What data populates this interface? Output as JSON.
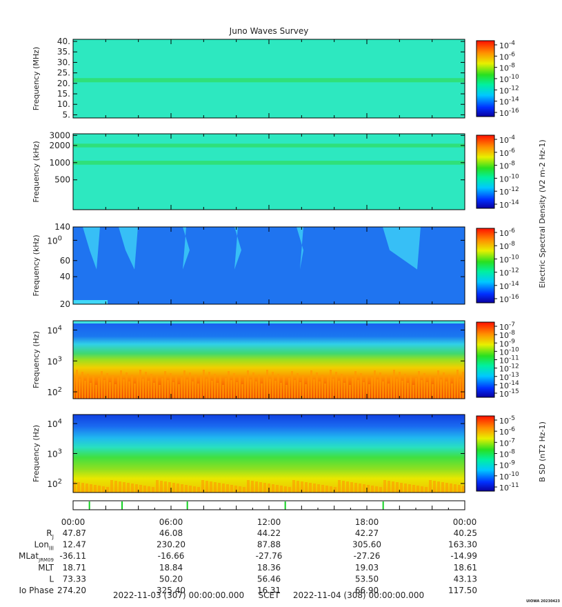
{
  "title": "Juno Waves Survey",
  "panels": [
    {
      "id": "p1",
      "ylabel": "Frequency (MHz)",
      "scale": "linear",
      "ylim": [
        3.5,
        41
      ],
      "ticks": [
        {
          "v": 40,
          "label": "40."
        },
        {
          "v": 35,
          "label": "35."
        },
        {
          "v": 30,
          "label": "30."
        },
        {
          "v": 25,
          "label": "25."
        },
        {
          "v": 20,
          "label": "20."
        },
        {
          "v": 15,
          "label": "15."
        },
        {
          "v": 10,
          "label": "10."
        },
        {
          "v": 5,
          "label": "5."
        }
      ],
      "bg": "#2de8c0",
      "band_color": "#2fe07a",
      "bands": [
        {
          "from": 20.5,
          "to": 22.5
        }
      ],
      "cb": {
        "type": "E",
        "labels": [
          "10-4",
          "10-6",
          "10-8",
          "10-10",
          "10-12",
          "10-14",
          "10-16"
        ]
      }
    },
    {
      "id": "p2",
      "ylabel": "Frequency (kHz)",
      "scale": "log",
      "ylim": [
        150,
        3200
      ],
      "ticks": [
        {
          "v": 3000,
          "label": "3000"
        },
        {
          "v": 2000,
          "label": "2000"
        },
        {
          "v": 1000,
          "label": "1000"
        },
        {
          "v": 500,
          "label": "500"
        }
      ],
      "bg": "#2de8c0",
      "band_color": "#2fe07a",
      "bands": [
        {
          "from": 1850,
          "to": 2150
        },
        {
          "from": 920,
          "to": 1080
        }
      ],
      "cb": {
        "type": "E",
        "labels": [
          "10-4",
          "10-6",
          "10-8",
          "10-10",
          "10-12",
          "10-14"
        ]
      }
    },
    {
      "id": "p3",
      "ylabel": "Frequency (kHz)",
      "scale": "log",
      "ylim": [
        20,
        140
      ],
      "ticks": [
        {
          "v": 140,
          "label": "140"
        },
        {
          "v": 100,
          "label": "100"
        },
        {
          "v": 60,
          "label": "60"
        },
        {
          "v": 40,
          "label": "40"
        },
        {
          "v": 20,
          "label": "20"
        }
      ],
      "bg": "#1f74f0",
      "band_color": "#2bb8f5",
      "bands": [],
      "cb": {
        "type": "E",
        "labels": [
          "10-6",
          "10-8",
          "10-10",
          "10-12",
          "10-14",
          "10-16"
        ]
      }
    },
    {
      "id": "p4",
      "ylabel": "Frequency (Hz)",
      "scale": "log",
      "ylim": [
        60,
        20000
      ],
      "ticks": [
        {
          "v": 10000,
          "label": "104"
        },
        {
          "v": 1000,
          "label": "103"
        },
        {
          "v": 100,
          "label": "102"
        }
      ],
      "bg": "#1f74f0",
      "band_color": "#2bd8e0",
      "bands": [],
      "cb": {
        "type": "E",
        "labels": [
          "10-7",
          "10-8",
          "10-9",
          "10-10",
          "10-11",
          "10-12",
          "10-13",
          "10-14",
          "10-15"
        ]
      }
    },
    {
      "id": "p5",
      "ylabel": "Frequency (Hz)",
      "scale": "log",
      "ylim": [
        50,
        20000
      ],
      "ticks": [
        {
          "v": 10000,
          "label": "104"
        },
        {
          "v": 1000,
          "label": "103"
        },
        {
          "v": 100,
          "label": "102"
        }
      ],
      "bg": "#1f5cf0",
      "band_color": "#2bd8e0",
      "bands": [],
      "cb": {
        "type": "B",
        "labels": [
          "10-5",
          "10-6",
          "10-7",
          "10-8",
          "10-9",
          "10-10",
          "10-11"
        ]
      }
    }
  ],
  "colorbar_labels": {
    "E": "Electric Spectral Density (V2 m-2 Hz-1)",
    "B": "B SD (nT2 Hz-1)"
  },
  "time_ticks": [
    "00:00",
    "06:00",
    "12:00",
    "18:00",
    "00:00"
  ],
  "ephemeris": [
    {
      "label": "RJ",
      "values": [
        "47.87",
        "46.08",
        "44.22",
        "42.27",
        "40.25"
      ]
    },
    {
      "label": "LonIII",
      "values": [
        "12.47",
        "230.20",
        "87.88",
        "305.60",
        "163.30"
      ]
    },
    {
      "label": "MLatJRM09",
      "values": [
        "-36.11",
        "-16.66",
        "-27.76",
        "-27.26",
        "-14.99"
      ]
    },
    {
      "label": "MLT",
      "values": [
        "18.71",
        "18.84",
        "18.36",
        "19.03",
        "18.61"
      ]
    },
    {
      "label": "L",
      "values": [
        "73.33",
        "50.20",
        "56.46",
        "53.50",
        "43.13"
      ]
    },
    {
      "label": "Io Phase",
      "values": [
        "274.20",
        "325.40",
        "16.31",
        "66.90",
        "117.50"
      ]
    }
  ],
  "footer": {
    "start": "2022-11-03 (307) 00:00:00.000",
    "scet": "SCET",
    "end": "2022-11-04 (308) 00:00:00.000"
  },
  "credit": "UIOWA 20230423",
  "chart_data": {
    "type": "heatmap",
    "title": "Juno Waves Survey",
    "x": "time",
    "xlim": [
      "2022-11-03 00:00",
      "2022-11-04 00:00"
    ],
    "panels": [
      {
        "ylabel": "Frequency (MHz)",
        "ylim": [
          3.5,
          41
        ],
        "scale": "linear"
      },
      {
        "ylabel": "Frequency (kHz)",
        "ylim": [
          150,
          3200
        ],
        "scale": "log"
      },
      {
        "ylabel": "Frequency (kHz)",
        "ylim": [
          20,
          140
        ],
        "scale": "log"
      },
      {
        "ylabel": "Frequency (Hz)",
        "ylim": [
          60,
          20000
        ],
        "scale": "log"
      },
      {
        "ylabel": "Frequency (Hz)",
        "ylim": [
          50,
          20000
        ],
        "scale": "log"
      }
    ]
  }
}
